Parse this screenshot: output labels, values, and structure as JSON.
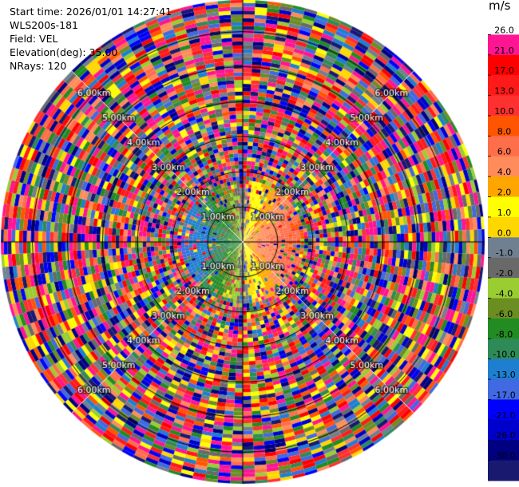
{
  "info": {
    "start_time": "Start time: 2026/01/01 14:27:41",
    "site": "WLS200s-181",
    "field": "Field: VEL",
    "elevation": "Elevation(deg): 35.00",
    "nrays": "NRays: 120"
  },
  "chart_data": {
    "type": "heatmap",
    "subtype": "ppi-polar",
    "field": "VEL",
    "unit": "m/s",
    "nrays": 120,
    "elevation_deg": 35.0,
    "range_rings_km": [
      1.0,
      2.0,
      3.0,
      4.0,
      5.0,
      6.0
    ],
    "range_ring_labels": [
      "1.00km",
      "2.00km",
      "3.00km",
      "4.00km",
      "5.00km",
      "6.00km"
    ],
    "max_range_km": 6.9,
    "colorbar": {
      "ticks": [
        "26.0",
        "21.0",
        "17.0",
        "13.0",
        "10.0",
        "8.0",
        "6.0",
        "4.0",
        "2.0",
        "1.0",
        "0.0",
        "-1.0",
        "-2.0",
        "-4.0",
        "-6.0",
        "-8.0",
        "-10.0",
        "-13.0",
        "-17.0",
        "-21.0",
        "-26.0",
        "-30.0"
      ],
      "colors": [
        "#ffffff",
        "#ff1493",
        "#ff0000",
        "#ff1a1a",
        "#ff3030",
        "#ff5500",
        "#ff6e4a",
        "#ff8c5a",
        "#ffa500",
        "#ffff00",
        "#ffd700",
        "#708090",
        "#696969",
        "#9acd32",
        "#6b8e23",
        "#228b22",
        "#2e8b57",
        "#1e7fd0",
        "#4169e1",
        "#0000ff",
        "#0000cd",
        "#000080",
        "#191970"
      ]
    },
    "pattern": {
      "clean_range_km": 1.7,
      "near_field": "receding (warm colours) east, approaching (cool colours) west",
      "far_field": "noise"
    }
  }
}
